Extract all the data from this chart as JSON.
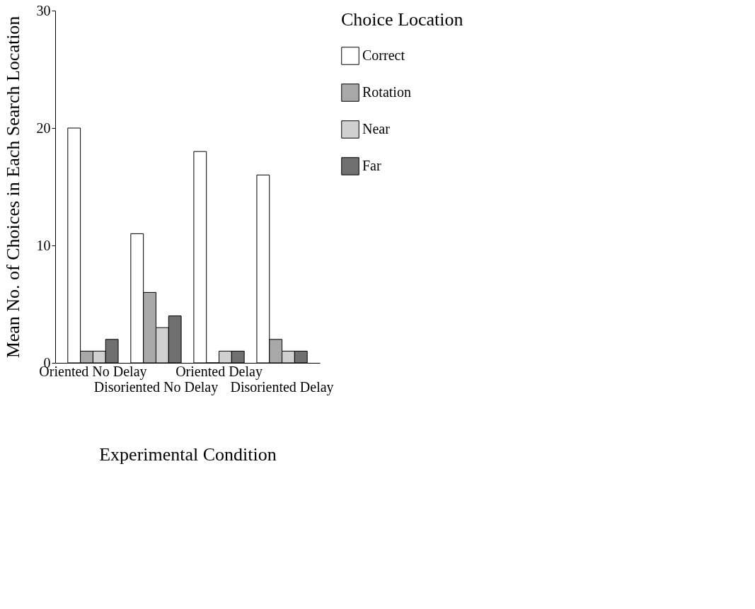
{
  "chart_data": {
    "type": "bar",
    "xlabel": "Experimental Condition",
    "ylabel": "Mean No. of Choices in Each Search Location",
    "legend_title": "Choice Location",
    "categories": [
      "Oriented No Delay",
      "Disoriented No Delay",
      "Oriented Delay",
      "Disoriented Delay"
    ],
    "series": [
      {
        "name": "Correct",
        "color": "#ffffff",
        "values": [
          20,
          11,
          18,
          16
        ]
      },
      {
        "name": "Rotation",
        "color": "#a8a8a8",
        "values": [
          1,
          6,
          0,
          2
        ]
      },
      {
        "name": "Near",
        "color": "#d0d0d0",
        "values": [
          1,
          3,
          1,
          1
        ]
      },
      {
        "name": "Far",
        "color": "#707070",
        "values": [
          2,
          4,
          1,
          1
        ]
      }
    ],
    "ylim": [
      0,
      30
    ],
    "yticks": [
      0,
      10,
      20,
      30
    ],
    "grid": false,
    "legend": "right"
  }
}
